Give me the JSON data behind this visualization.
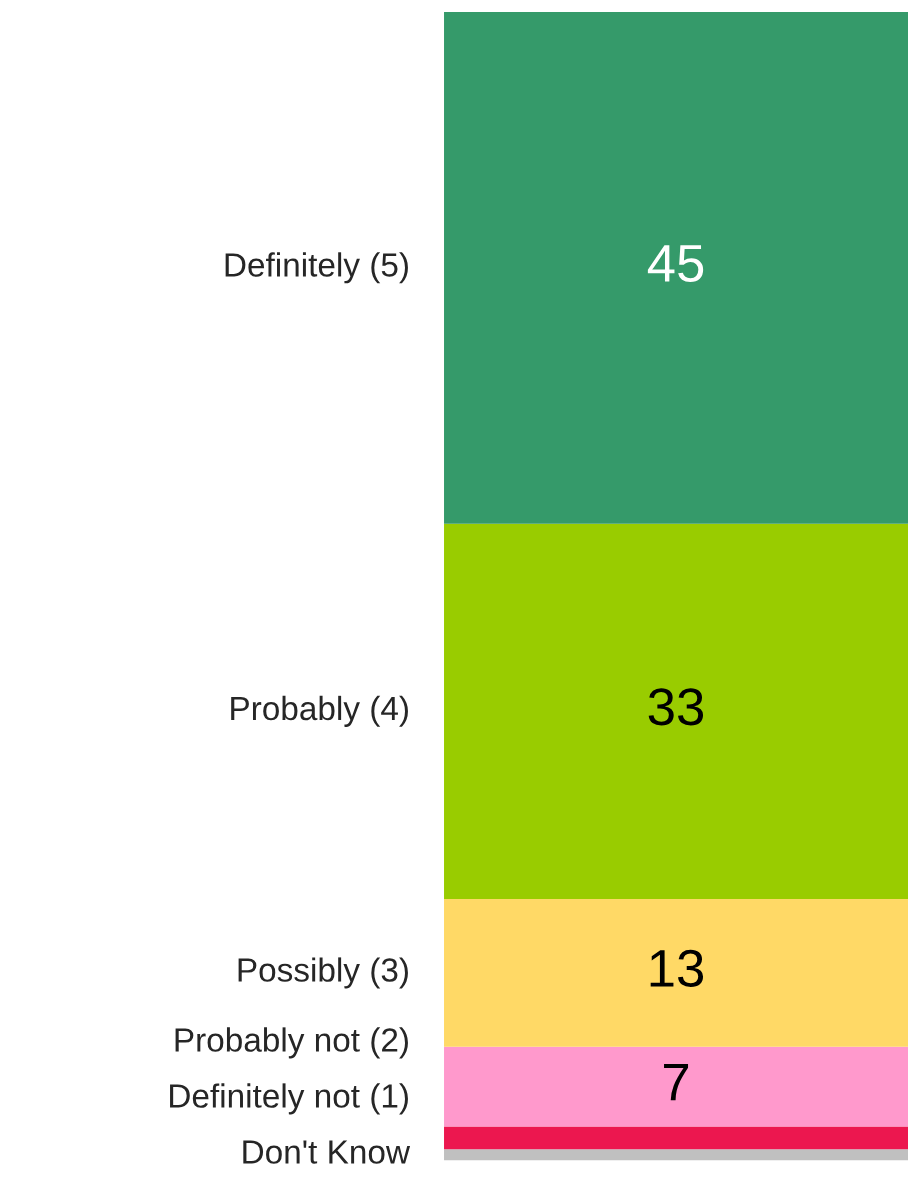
{
  "chart_data": {
    "type": "bar",
    "stacked": true,
    "legend": false,
    "categories": [
      null
    ],
    "series": [
      {
        "name": "Don't Know",
        "color": "#c0c0c0",
        "values": [
          1
        ],
        "value_labels": [
          null
        ]
      },
      {
        "name": "Definitely not (1)",
        "color": "#ec174f",
        "values": [
          2
        ],
        "value_labels": [
          null
        ]
      },
      {
        "name": "Probably not (2)",
        "color": "#ff99cc",
        "values": [
          7
        ],
        "value_labels": [
          "7"
        ]
      },
      {
        "name": "Possibly (3)",
        "color": "#ffd966",
        "values": [
          13
        ],
        "value_labels": [
          "13"
        ]
      },
      {
        "name": "Probably (4)",
        "color": "#99cc00",
        "values": [
          33
        ],
        "value_labels": [
          "33"
        ]
      },
      {
        "name": "Definitely (5)",
        "color": "#359a6a",
        "values": [
          45
        ],
        "value_labels": [
          "45"
        ]
      }
    ]
  }
}
